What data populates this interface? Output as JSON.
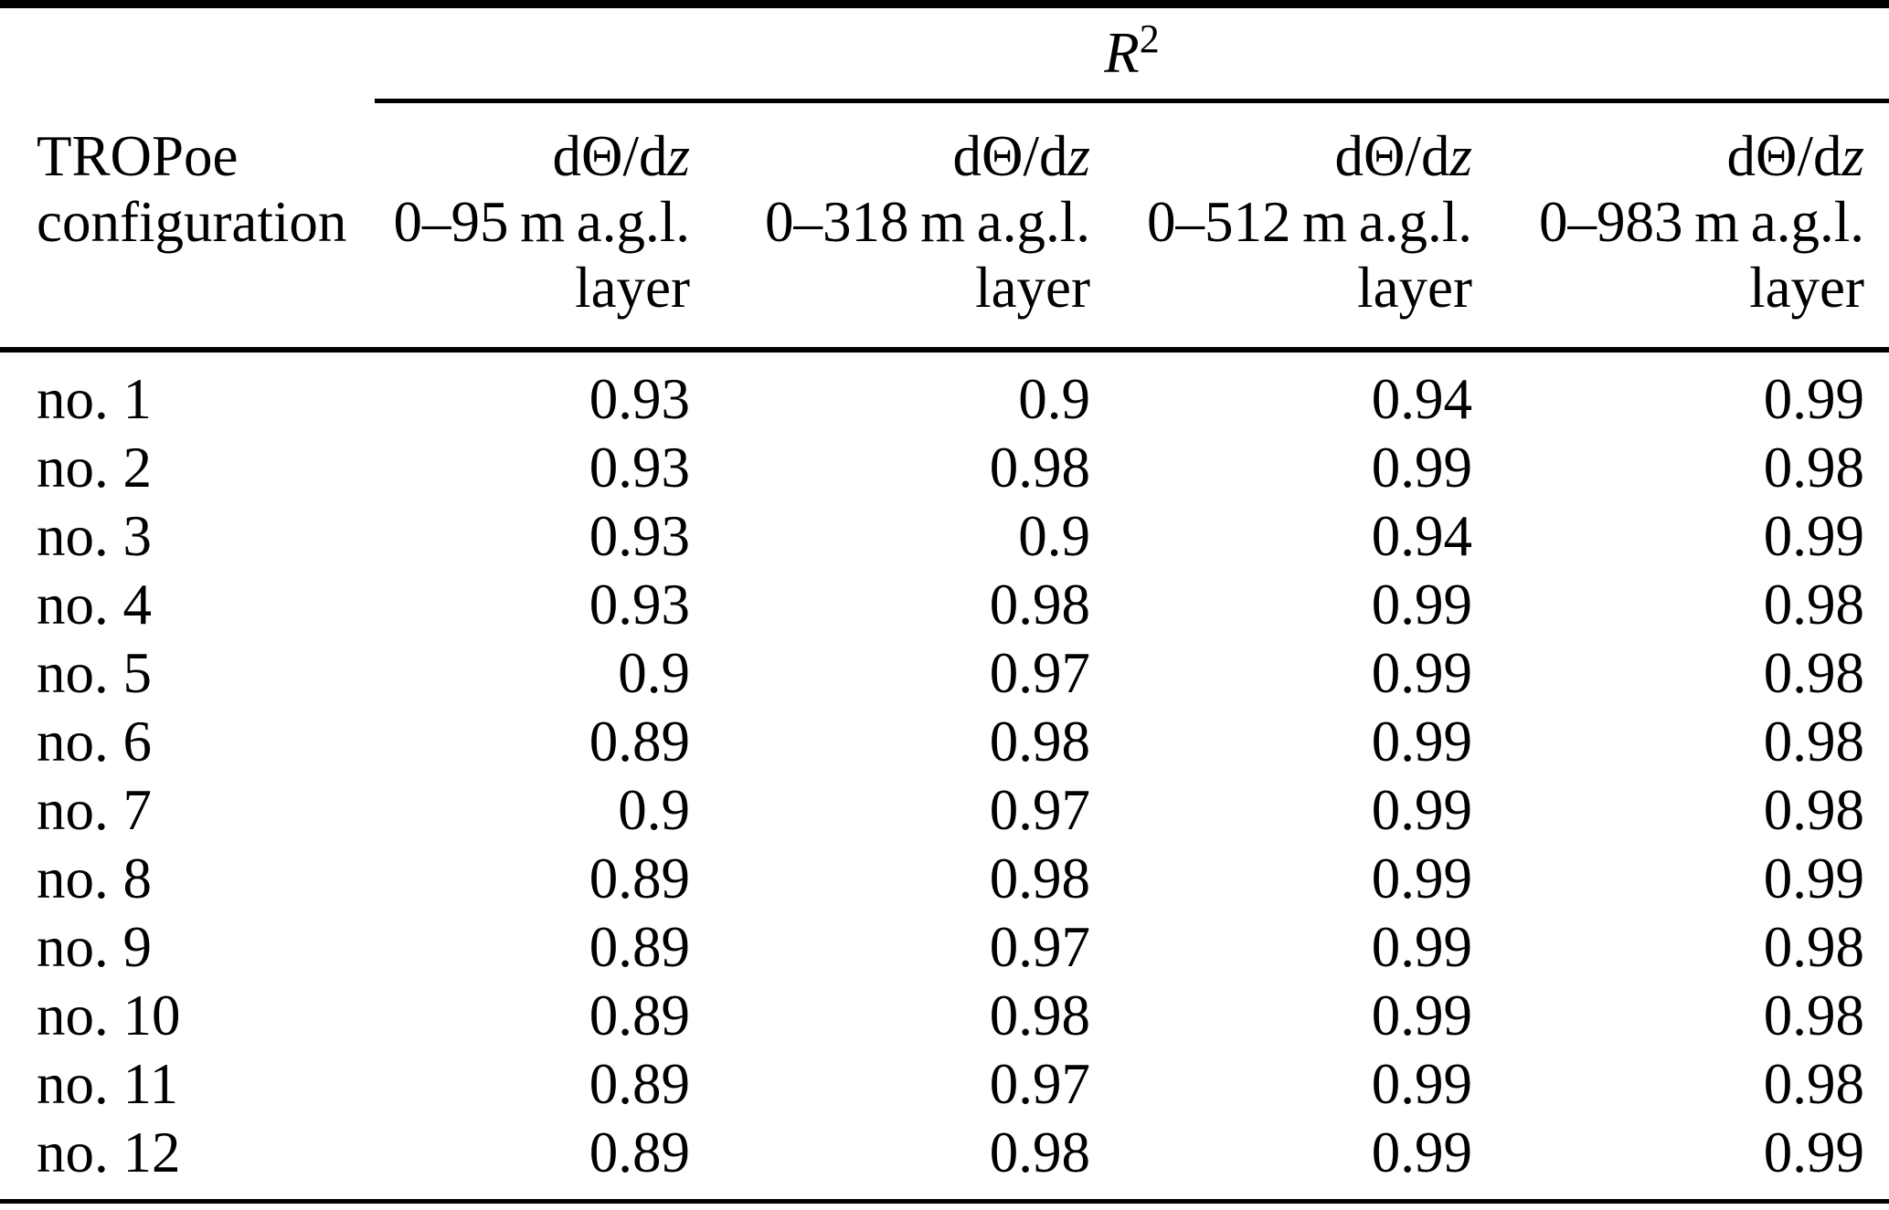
{
  "table": {
    "colors": {
      "text": "#000000",
      "background": "#ffffff",
      "rule": "#000000"
    },
    "group_header": {
      "symbol": "R",
      "exponent": "2"
    },
    "row_header": {
      "line1": "TROPoe",
      "line2": "configuration"
    },
    "columns": [
      {
        "symbol_prefix": "dΘ/d",
        "symbol_var": "z",
        "range": "0–95 m a.g.l.",
        "unit": "layer"
      },
      {
        "symbol_prefix": "dΘ/d",
        "symbol_var": "z",
        "range": "0–318 m a.g.l.",
        "unit": "layer"
      },
      {
        "symbol_prefix": "dΘ/d",
        "symbol_var": "z",
        "range": "0–512 m a.g.l.",
        "unit": "layer"
      },
      {
        "symbol_prefix": "dΘ/d",
        "symbol_var": "z",
        "range": "0–983 m a.g.l.",
        "unit": "layer"
      }
    ],
    "rows": [
      {
        "label": "no. 1",
        "values": [
          "0.93",
          "0.9",
          "0.94",
          "0.99"
        ]
      },
      {
        "label": "no. 2",
        "values": [
          "0.93",
          "0.98",
          "0.99",
          "0.98"
        ]
      },
      {
        "label": "no. 3",
        "values": [
          "0.93",
          "0.9",
          "0.94",
          "0.99"
        ]
      },
      {
        "label": "no. 4",
        "values": [
          "0.93",
          "0.98",
          "0.99",
          "0.98"
        ]
      },
      {
        "label": "no. 5",
        "values": [
          "0.9",
          "0.97",
          "0.99",
          "0.98"
        ]
      },
      {
        "label": "no. 6",
        "values": [
          "0.89",
          "0.98",
          "0.99",
          "0.98"
        ]
      },
      {
        "label": "no. 7",
        "values": [
          "0.9",
          "0.97",
          "0.99",
          "0.98"
        ]
      },
      {
        "label": "no. 8",
        "values": [
          "0.89",
          "0.98",
          "0.99",
          "0.99"
        ]
      },
      {
        "label": "no. 9",
        "values": [
          "0.89",
          "0.97",
          "0.99",
          "0.98"
        ]
      },
      {
        "label": "no. 10",
        "values": [
          "0.89",
          "0.98",
          "0.99",
          "0.98"
        ]
      },
      {
        "label": "no. 11",
        "values": [
          "0.89",
          "0.97",
          "0.99",
          "0.98"
        ]
      },
      {
        "label": "no. 12",
        "values": [
          "0.89",
          "0.98",
          "0.99",
          "0.99"
        ]
      }
    ]
  }
}
